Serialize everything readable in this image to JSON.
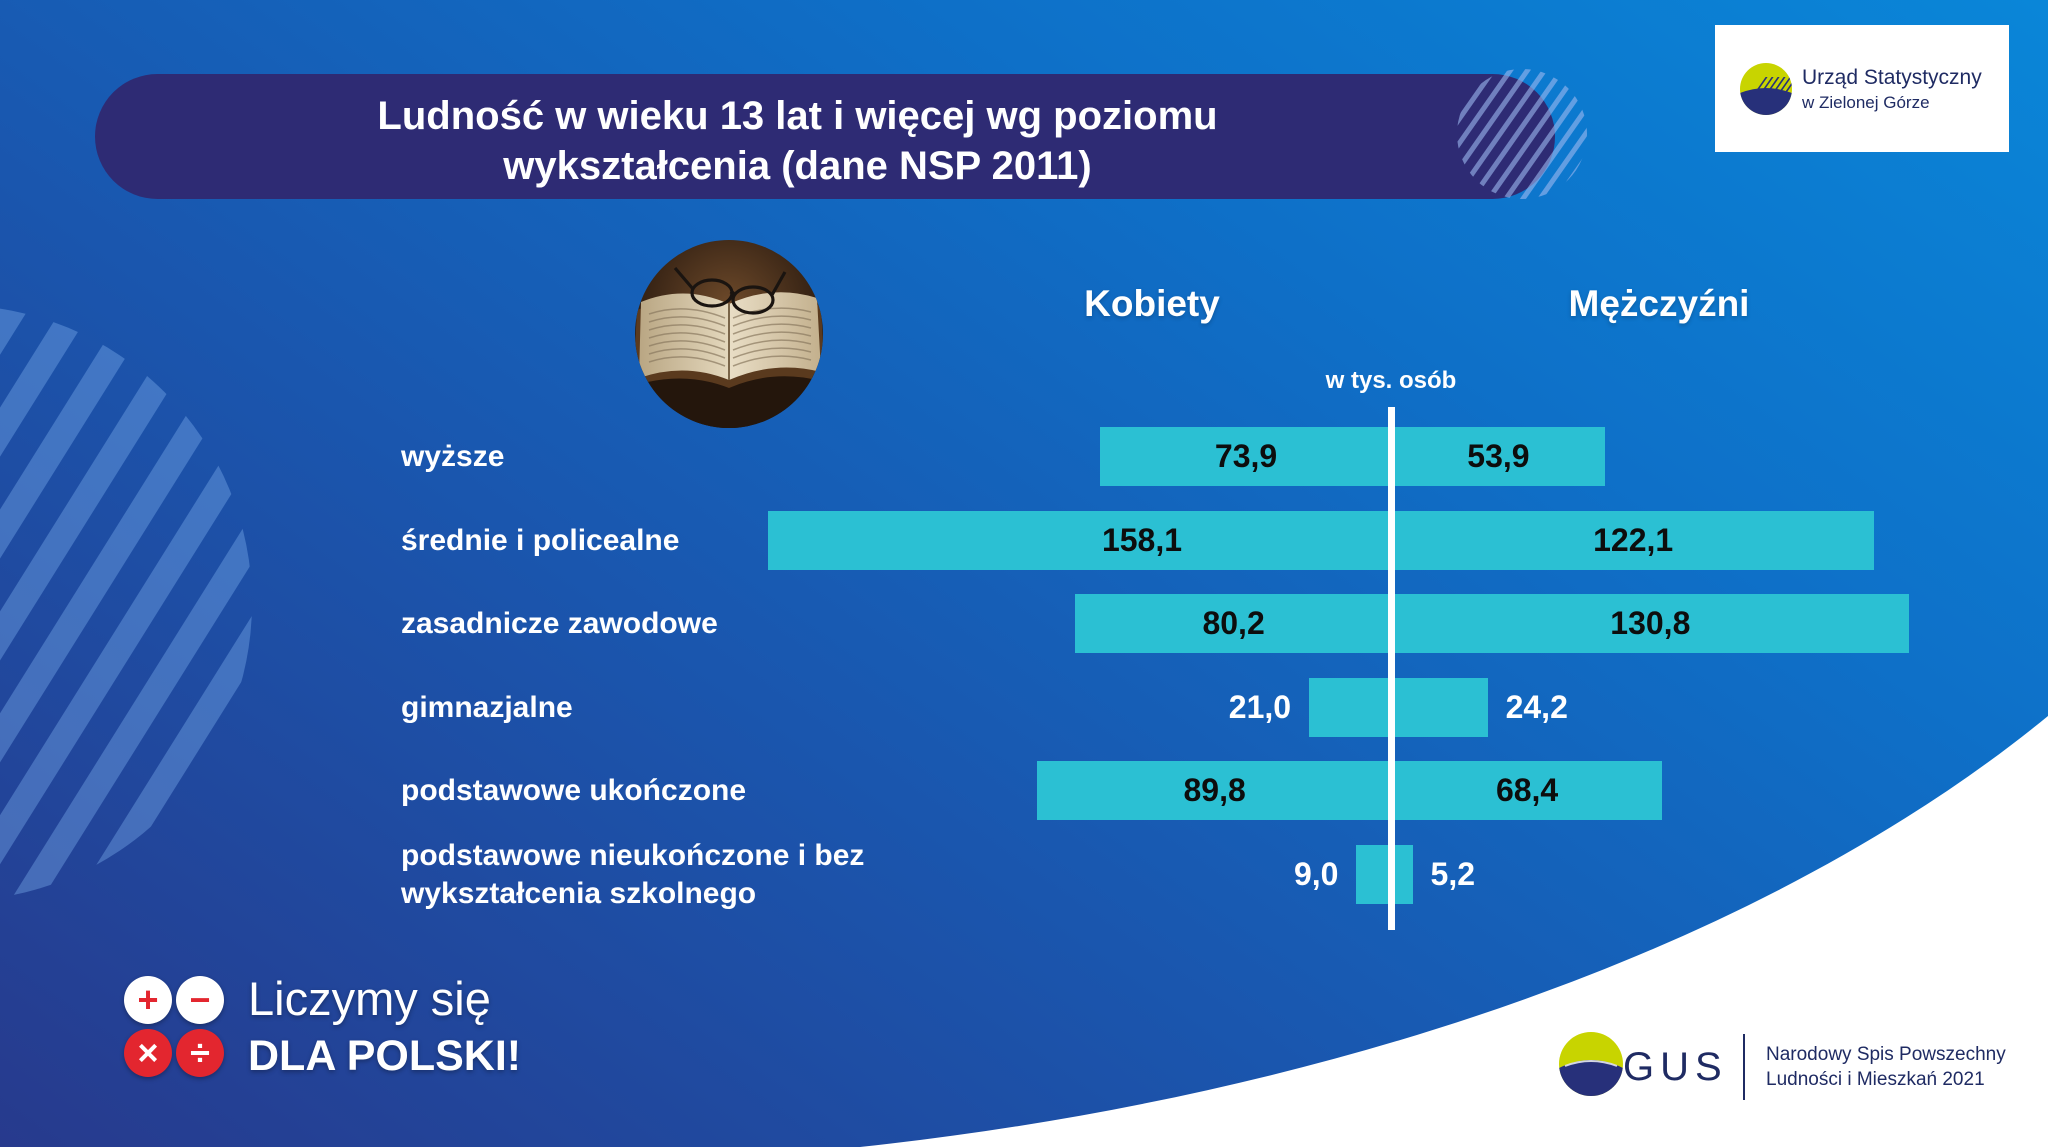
{
  "office": {
    "name": "Urząd Statystyczny",
    "location": "w Zielonej Górze"
  },
  "chart_data": {
    "type": "bar",
    "orientation": "horizontal",
    "subtype": "diverging",
    "title": "Ludność w wieku 13 lat i więcej wg poziomu\nwykształcenia (dane NSP 2011)",
    "unit": "w tys. osób",
    "categories": [
      "wyższe",
      "średnie i policealne",
      "zasadnicze zawodowe",
      "gimnazjalne",
      "podstawowe ukończone",
      "podstawowe nieukończone i bez\nwykształcenia szkolnego"
    ],
    "series": [
      {
        "name": "Kobiety",
        "values": [
          73.9,
          158.1,
          80.2,
          21.0,
          89.8,
          9.0
        ],
        "labels": [
          "73,9",
          "158,1",
          "80,2",
          "21,0",
          "89,8",
          "9,0"
        ]
      },
      {
        "name": "Mężczyźni",
        "values": [
          53.9,
          122.1,
          130.8,
          24.2,
          68.4,
          5.2
        ],
        "labels": [
          "53,9",
          "122,1",
          "130,8",
          "24,2",
          "68,4",
          "5,2"
        ]
      }
    ],
    "grid": false,
    "legend": "top"
  },
  "footer": {
    "campaign": {
      "line1": "Liczymy się",
      "line2": "DLA POLSKI!",
      "operators": [
        "+",
        "−",
        "×",
        "÷"
      ]
    },
    "gus": {
      "wordmark": "GUS",
      "census_line1": "Narodowy Spis Powszechny",
      "census_line2": "Ludności i Mieszkań 2021"
    }
  },
  "icons": {
    "photo": "book-with-glasses-photo",
    "office_logo": "statistical-office-logo-icon",
    "gus_logo": "gus-logo-icon"
  },
  "colors": {
    "bar": "#2bc0d3",
    "label_inside": "#0d0d0d",
    "label_outside": "#ffffff",
    "title_banner": "#2e2b74",
    "brand_navy": "#1f2b63",
    "brand_lime": "#c8d400",
    "campaign_red": "#e3262f"
  }
}
